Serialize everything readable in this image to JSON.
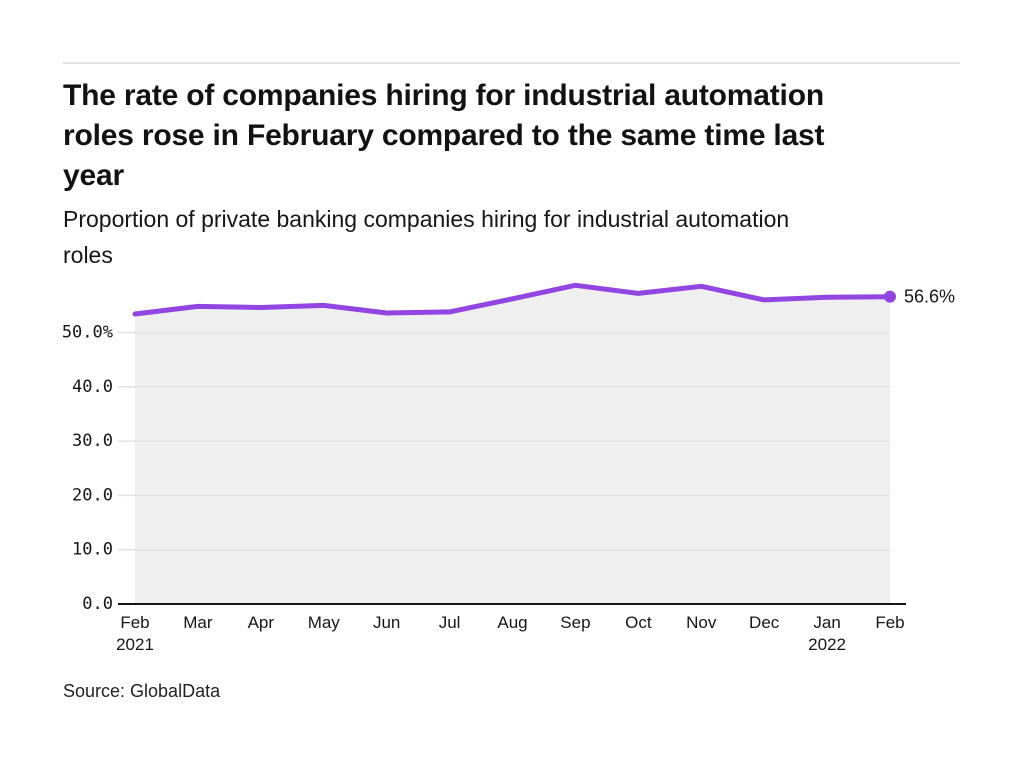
{
  "header": {
    "title_lines": [
      "The rate of companies hiring for industrial automation",
      "roles rose in February compared to the same time last",
      "year"
    ],
    "subtitle_lines": [
      "Proportion of private banking companies hiring for industrial automation",
      "roles"
    ]
  },
  "source": "Source: GlobalData",
  "chart_data": {
    "type": "area",
    "title": "The rate of companies hiring for industrial automation roles rose in February compared to the same time last year",
    "subtitle": "Proportion of private banking companies hiring for industrial automation roles",
    "categories": [
      "Feb 2021",
      "Mar",
      "Apr",
      "May",
      "Jun",
      "Jul",
      "Aug",
      "Sep",
      "Oct",
      "Nov",
      "Dec",
      "Jan 2022",
      "Feb 2022"
    ],
    "x_ticks": [
      {
        "label": "Feb",
        "year": "2021"
      },
      {
        "label": "Mar"
      },
      {
        "label": "Apr"
      },
      {
        "label": "May"
      },
      {
        "label": "Jun"
      },
      {
        "label": "Jul"
      },
      {
        "label": "Aug"
      },
      {
        "label": "Sep"
      },
      {
        "label": "Oct"
      },
      {
        "label": "Nov"
      },
      {
        "label": "Dec"
      },
      {
        "label": "Jan",
        "year": "2022"
      },
      {
        "label": "Feb"
      }
    ],
    "values": [
      53.4,
      54.8,
      54.6,
      55.0,
      53.6,
      53.8,
      56.2,
      58.7,
      57.2,
      58.5,
      56.0,
      56.5,
      56.6
    ],
    "end_label": "56.6%",
    "y_ticks": [
      {
        "value": 0,
        "label": "0.0"
      },
      {
        "value": 10,
        "label": "10.0"
      },
      {
        "value": 20,
        "label": "20.0"
      },
      {
        "value": 30,
        "label": "30.0"
      },
      {
        "value": 40,
        "label": "40.0"
      },
      {
        "value": 50,
        "label": "50.0%"
      }
    ],
    "ylim": [
      0,
      62
    ],
    "grid": true,
    "legend_position": "none",
    "colors": {
      "line": "#9245e0",
      "marker": "#9245e0",
      "area_fill": "#efefef",
      "grid_line": "#e2e2e2",
      "axis_line": "#161616",
      "tick_text": "#161616",
      "annotation_text": "#161616"
    }
  }
}
